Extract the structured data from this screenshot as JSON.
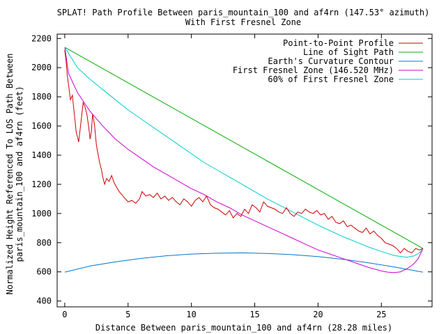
{
  "chart_data": {
    "type": "line",
    "title": "SPLAT! Path Profile Between paris_mountain_100 and af4rn (147.53° azimuth)",
    "subtitle": "With First Fresnel Zone",
    "xlabel": "Distance Between paris_mountain_100 and af4rn (28.28 miles)",
    "ylabel": "Normalized Height Referenced To LOS Path Between",
    "ylabel2": "paris_mountain_100 and af4rn (feet)",
    "xlim": [
      -0.6,
      29
    ],
    "ylim": [
      360,
      2230
    ],
    "xticks": [
      0,
      5,
      10,
      15,
      20,
      25
    ],
    "yticks": [
      400,
      600,
      800,
      1000,
      1200,
      1400,
      1600,
      1800,
      2000,
      2200
    ],
    "grid": false,
    "legend_position": "top-right",
    "series": [
      {
        "name": "Point-to-Point Profile",
        "color": "#cc0000",
        "x": [
          0,
          0.1,
          0.2,
          0.3,
          0.45,
          0.6,
          0.75,
          0.9,
          1.1,
          1.3,
          1.45,
          1.6,
          1.75,
          1.9,
          2.0,
          2.1,
          2.2,
          2.35,
          2.5,
          2.6,
          2.75,
          2.9,
          3.0,
          3.15,
          3.3,
          3.5,
          3.7,
          3.9,
          4.1,
          4.3,
          4.5,
          4.8,
          5.0,
          5.3,
          5.6,
          5.9,
          6.1,
          6.4,
          6.7,
          7.0,
          7.3,
          7.6,
          7.9,
          8.2,
          8.5,
          8.8,
          9.1,
          9.4,
          9.7,
          10.0,
          10.3,
          10.6,
          10.9,
          11.2,
          11.5,
          11.8,
          12.1,
          12.4,
          12.7,
          13.0,
          13.3,
          13.6,
          13.9,
          14.2,
          14.5,
          14.8,
          15.1,
          15.4,
          15.7,
          16.0,
          16.3,
          16.6,
          16.9,
          17.2,
          17.5,
          17.8,
          18.1,
          18.4,
          18.7,
          19.0,
          19.3,
          19.6,
          19.9,
          20.2,
          20.5,
          20.8,
          21.1,
          21.4,
          21.7,
          22.0,
          22.3,
          22.6,
          22.9,
          23.2,
          23.5,
          23.8,
          24.1,
          24.4,
          24.7,
          25.0,
          25.3,
          25.6,
          25.9,
          26.2,
          26.5,
          26.8,
          27.1,
          27.4,
          27.7,
          28.0,
          28.28
        ],
        "y": [
          2120,
          2050,
          1950,
          1880,
          1780,
          1810,
          1690,
          1560,
          1490,
          1640,
          1760,
          1730,
          1680,
          1590,
          1510,
          1560,
          1680,
          1610,
          1470,
          1420,
          1350,
          1300,
          1250,
          1200,
          1240,
          1220,
          1260,
          1210,
          1180,
          1150,
          1130,
          1100,
          1080,
          1090,
          1070,
          1100,
          1150,
          1120,
          1130,
          1110,
          1140,
          1100,
          1120,
          1090,
          1110,
          1080,
          1060,
          1100,
          1080,
          1050,
          1090,
          1110,
          1080,
          1120,
          1060,
          1040,
          1030,
          1010,
          990,
          1020,
          970,
          1000,
          980,
          1030,
          1000,
          1060,
          1040,
          1010,
          1080,
          1050,
          1040,
          1030,
          1010,
          1000,
          1040,
          1000,
          980,
          1010,
          1000,
          1030,
          1010,
          1000,
          1020,
          990,
          1000,
          960,
          980,
          940,
          930,
          950,
          910,
          920,
          900,
          880,
          870,
          900,
          860,
          880,
          850,
          830,
          800,
          790,
          780,
          760,
          730,
          760,
          740,
          730,
          760,
          750,
          760
        ]
      },
      {
        "name": "Line of Sight Path",
        "color": "#00aa00",
        "x": [
          0,
          28.28
        ],
        "y": [
          2140,
          760
        ]
      },
      {
        "name": "Earth's Curvature Contour",
        "color": "#0077cc",
        "x": [
          0,
          2,
          4,
          6,
          8,
          10,
          12,
          14,
          16,
          18,
          20,
          22,
          24,
          26,
          28.28
        ],
        "y": [
          598,
          640,
          668,
          692,
          710,
          722,
          728,
          730,
          726,
          718,
          705,
          686,
          662,
          634,
          598
        ]
      },
      {
        "name": "First Fresnel Zone (146.520 MHz)",
        "color": "#cc00cc",
        "x": [
          0,
          0.3,
          1,
          2,
          3,
          4,
          5,
          6,
          7,
          8,
          9,
          10,
          11,
          12,
          13,
          14,
          15,
          16,
          17,
          18,
          19,
          20,
          21,
          22,
          23,
          24,
          25,
          25.5,
          26,
          26.5,
          27,
          27.5,
          27.9,
          28.1,
          28.28
        ],
        "y": [
          2140,
          1960,
          1830,
          1700,
          1600,
          1510,
          1440,
          1380,
          1320,
          1270,
          1220,
          1170,
          1130,
          1080,
          1040,
          990,
          950,
          910,
          870,
          830,
          790,
          750,
          720,
          690,
          660,
          630,
          606,
          598,
          595,
          600,
          620,
          650,
          690,
          725,
          760
        ]
      },
      {
        "name": "60% of First Fresnel Zone",
        "color": "#00cccc",
        "x": [
          0,
          1,
          2,
          3,
          4,
          5,
          6,
          7,
          8,
          9,
          10,
          11,
          12,
          13,
          14,
          15,
          16,
          17,
          18,
          19,
          20,
          21,
          22,
          23,
          24,
          25,
          26,
          27,
          27.6,
          28.0,
          28.28
        ],
        "y": [
          2140,
          2000,
          1920,
          1850,
          1780,
          1710,
          1650,
          1590,
          1530,
          1470,
          1410,
          1350,
          1300,
          1250,
          1200,
          1150,
          1100,
          1055,
          1010,
          965,
          920,
          880,
          840,
          805,
          770,
          740,
          712,
          700,
          710,
          730,
          760
        ]
      }
    ]
  }
}
